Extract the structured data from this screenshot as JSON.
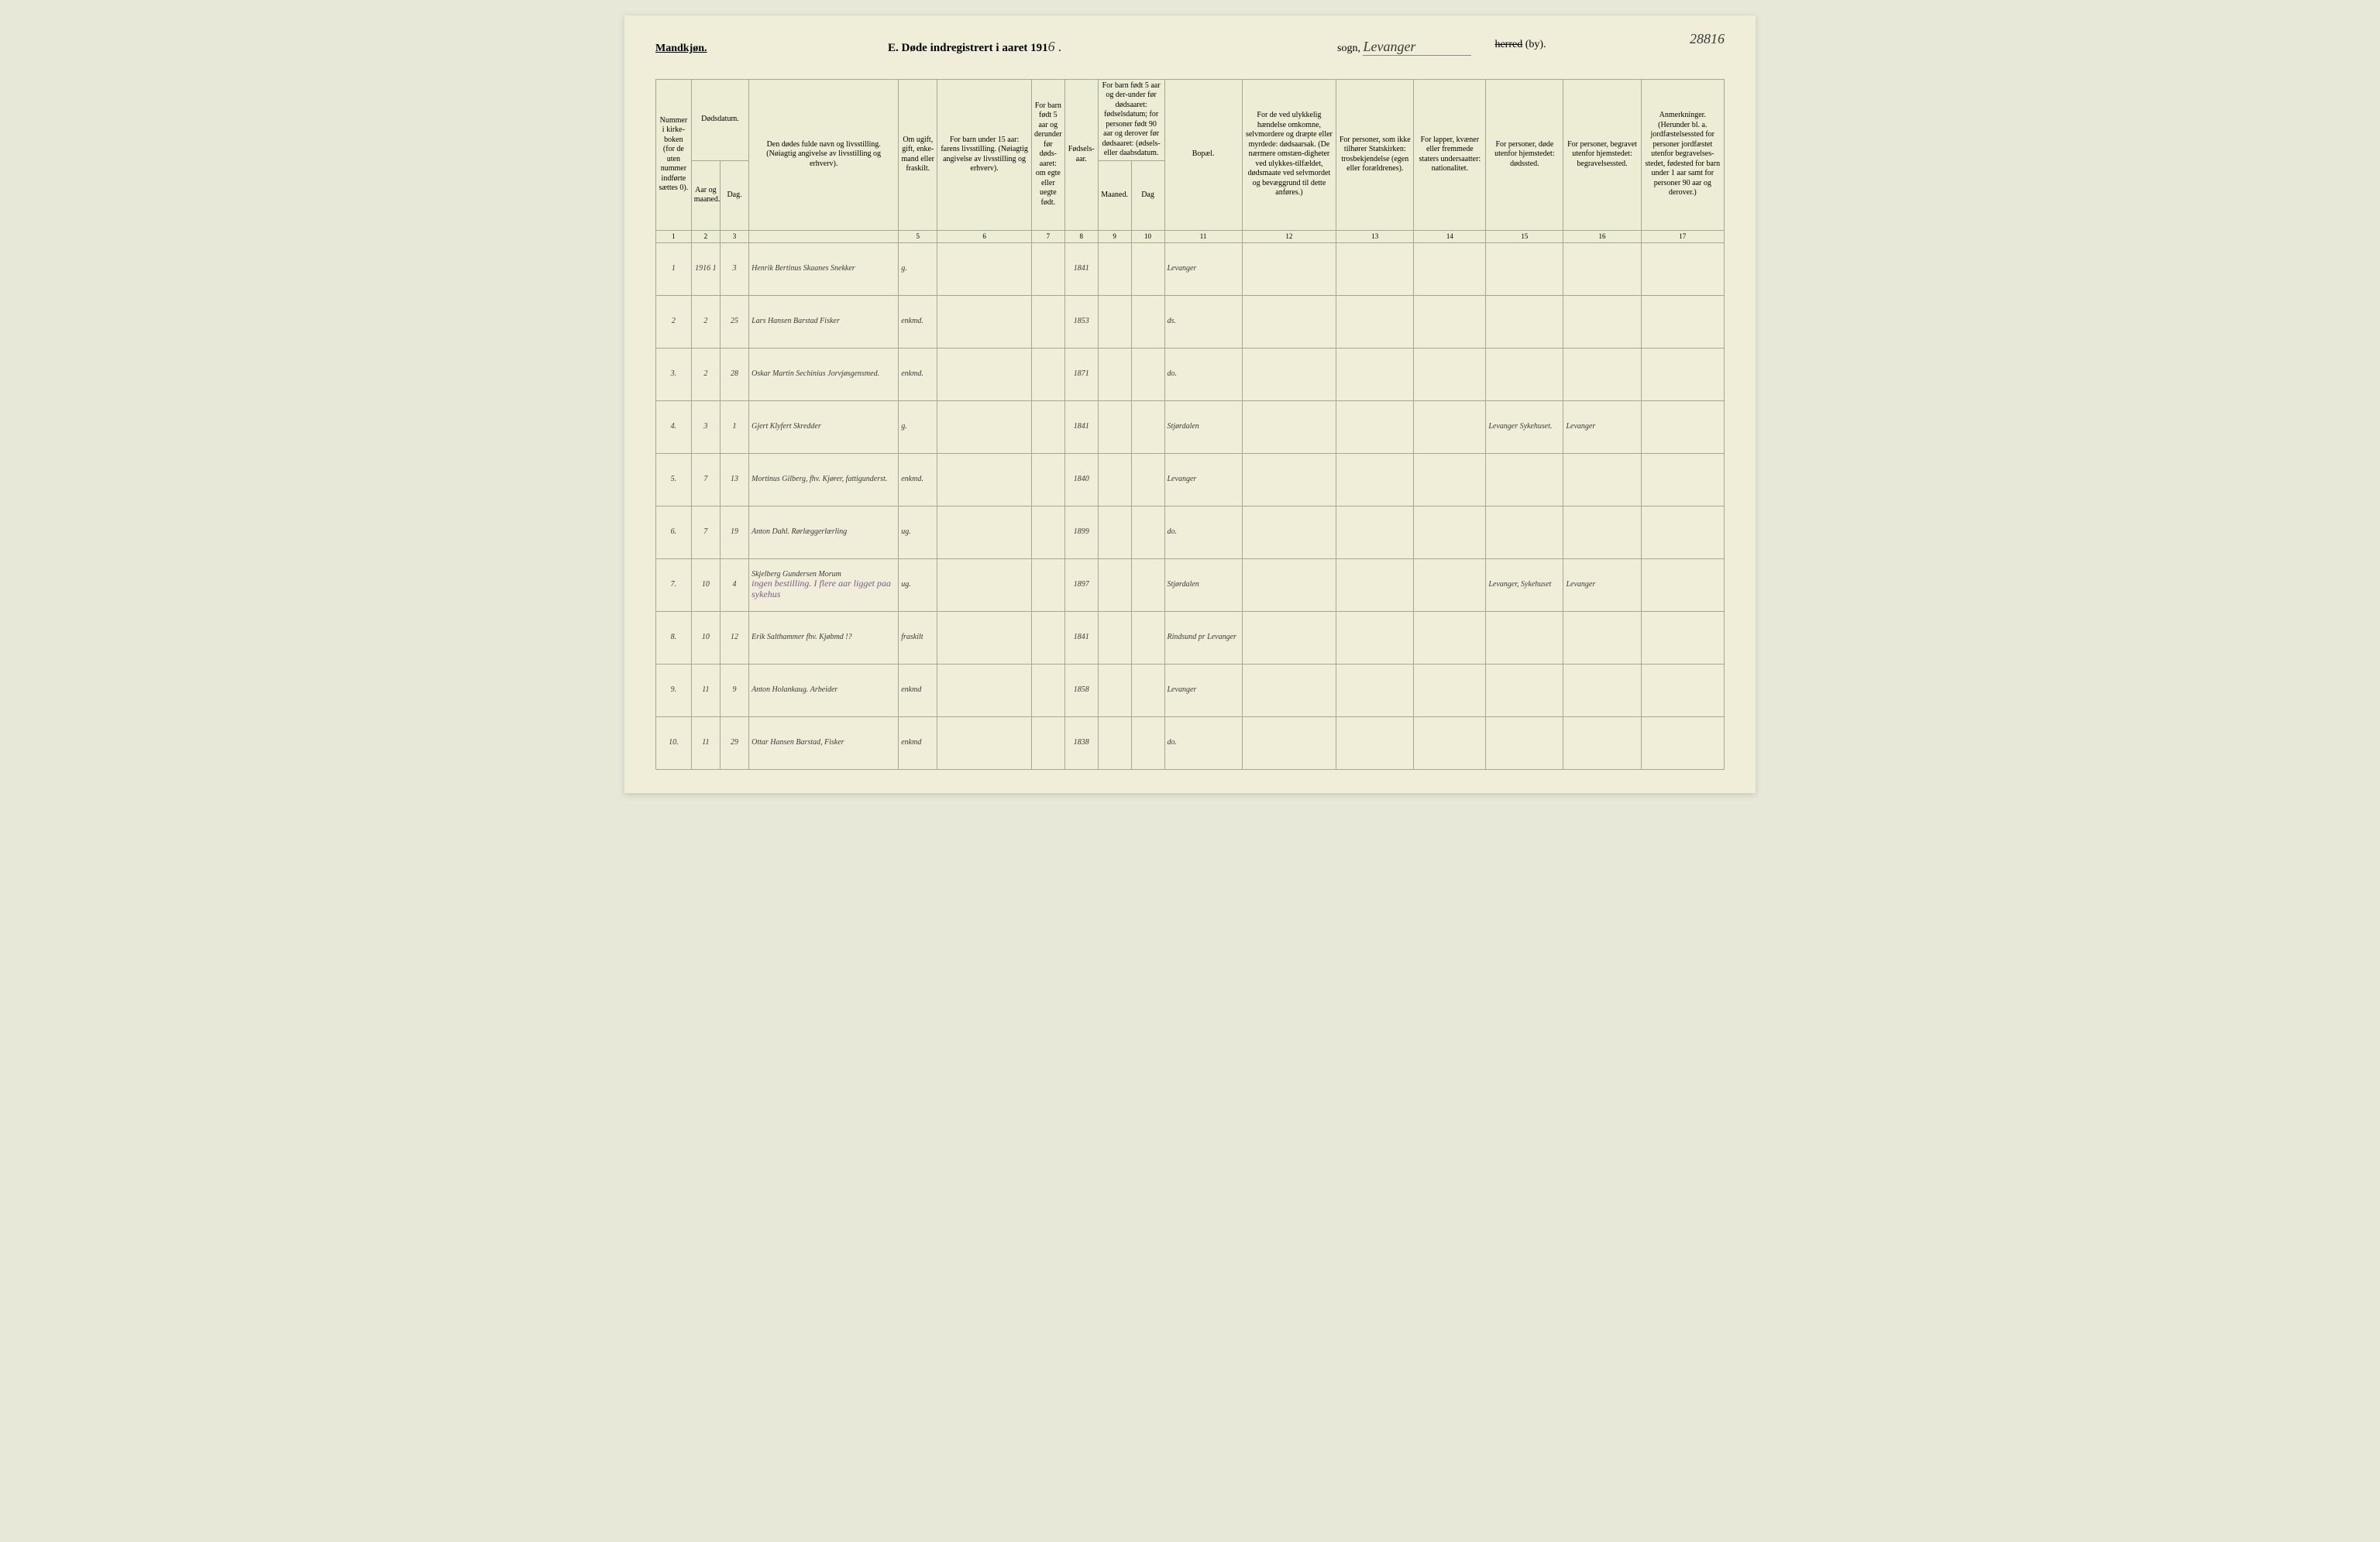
{
  "page_number_handwritten": "28816",
  "header": {
    "left": "Mandkjøn.",
    "title_prefix": "E.  Døde indregistrert i aaret 191",
    "year_suffix_handwritten": "6 .",
    "sogn_label": "sogn,",
    "sogn_value": "Levanger",
    "herred_struck": "herred",
    "herred_suffix": "(by)."
  },
  "columns": {
    "c1": "Nummer i kirke-boken (for de uten nummer indførte sættes 0).",
    "c2_group": "Dødsdatum.",
    "c2": "Aar og maaned.",
    "c3": "Dag.",
    "c4": "Den dødes fulde navn og livsstilling. (Nøiagtig angivelse av livsstilling og erhverv).",
    "c5": "Om ugift, gift, enke-mand eller fraskilt.",
    "c6": "For barn under 15 aar: farens livsstilling. (Nøiagtig angivelse av livsstilling og erhverv).",
    "c7": "For barn født 5 aar og derunder før døds-aaret: om egte eller uegte født.",
    "c8": "Fødsels-aar.",
    "c9_10_group": "For barn født 5 aar og der-under før dødsaaret: fødselsdatum; for personer født 90 aar og derover før dødsaaret: (ødsels- eller daabsdatum.",
    "c9": "Maaned.",
    "c10": "Dag",
    "c11": "Bopæl.",
    "c12": "For de ved ulykkelig hændelse omkomne, selvmordere og dræpte eller myrdede: dødsaarsak. (De nærmere omstæn-digheter ved ulykkes-tilfældet, dødsmaate ved selvmordet og bevæggrund til dette anføres.)",
    "c13": "For personer, som ikke tilhører Statskirken: trosbekjendelse (egen eller forældrenes).",
    "c14": "For lapper, kvæner eller fremmede staters undersaatter: nationalitet.",
    "c15": "For personer, døde utenfor hjemstedet: dødssted.",
    "c16": "For personer, begravet utenfor hjemstedet: begravelsessted.",
    "c17": "Anmerkninger. (Herunder bl. a. jordfæstelsessted for personer jordfæstet utenfor begravelses-stedet, fødested for barn under 1 aar samt for personer 90 aar og derover.)"
  },
  "colnums": [
    "1",
    "2",
    "3",
    "",
    "5",
    "6",
    "7",
    "8",
    "9",
    "10",
    "11",
    "12",
    "13",
    "14",
    "15",
    "16",
    "17"
  ],
  "rows": [
    {
      "n": "1",
      "yr": "1916  1",
      "day": "3",
      "name": "Henrik Bertinus Skaanes Snekker",
      "status": "g.",
      "birth": "1841",
      "bopel": "Levanger"
    },
    {
      "n": "2",
      "yr": "2",
      "day": "25",
      "name": "Lars Hansen Barstad Fisker",
      "status": "enkmd.",
      "birth": "1853",
      "bopel": "ds."
    },
    {
      "n": "3.",
      "yr": "2",
      "day": "28",
      "name": "Oskar Martin Sechinius Jorvjøsgensmed.",
      "status": "enkmd.",
      "birth": "1871",
      "bopel": "do."
    },
    {
      "n": "4.",
      "yr": "3",
      "day": "1",
      "name": "Gjert Klyfert Skredder",
      "status": "g.",
      "birth": "1841",
      "bopel": "Stjørdalen",
      "dodssted": "Levanger Sykehuset.",
      "begravsted": "Levanger"
    },
    {
      "n": "5.",
      "yr": "7",
      "day": "13",
      "name": "Mortinus Gilberg, fhv. Kjører, fattigunderst.",
      "status": "enkmd.",
      "birth": "1840",
      "bopel": "Levanger"
    },
    {
      "n": "6.",
      "yr": "7",
      "day": "19",
      "name": "Anton Dahl. Rørlæggerlærling",
      "status": "ug.",
      "birth": "1899",
      "bopel": "do."
    },
    {
      "n": "7.",
      "yr": "10",
      "day": "4",
      "name": "Skjelberg Gundersen Morum",
      "name_note": "ingen bestilling. I flere aar ligget paa sykehus",
      "status": "ug.",
      "birth": "1897",
      "bopel": "Stjørdalen",
      "dodssted": "Levanger, Sykehuset",
      "begravsted": "Levanger"
    },
    {
      "n": "8.",
      "yr": "10",
      "day": "12",
      "name": "Erik Salthammer fhv. Kjøbmd !?",
      "status": "fraskilt",
      "birth": "1841",
      "bopel": "Rindsund pr Levanger"
    },
    {
      "n": "9.",
      "yr": "11",
      "day": "9",
      "name": "Anton Holankaug. Arbeider",
      "status": "enkmd",
      "birth": "1858",
      "bopel": "Levanger"
    },
    {
      "n": "10.",
      "yr": "11",
      "day": "29",
      "name": "Ottar Hansen Barstad, Fisker",
      "status": "enkmd",
      "birth": "1838",
      "bopel": "do."
    }
  ],
  "colors": {
    "paper": "#f0eed8",
    "border": "#aaa58f",
    "ink": "#3a3a3a",
    "purple_note": "#7a5a8a"
  }
}
